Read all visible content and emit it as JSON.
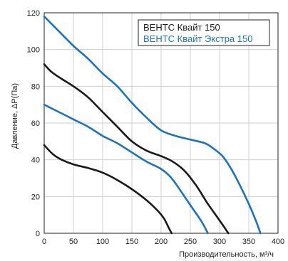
{
  "chart_data": {
    "type": "line",
    "title": "",
    "xlabel": "Производительность, м³/ч",
    "ylabel": "Давление, ΔP(Па)",
    "xlim": [
      0,
      400
    ],
    "ylim": [
      0,
      120
    ],
    "x_ticks": [
      0,
      50,
      100,
      150,
      200,
      250,
      300,
      350,
      400
    ],
    "y_ticks": [
      0,
      20,
      40,
      60,
      80,
      100,
      120
    ],
    "grid": true,
    "legend_position": "top-right",
    "legend": [
      {
        "label": "ВЕНТС Квайт 150",
        "color": "#1a1a1a"
      },
      {
        "label": "ВЕНТС Квайт Экстра 150",
        "color": "#1a73c2"
      }
    ],
    "series": [
      {
        "color": "#1a1a1a",
        "points": [
          [
            0,
            48
          ],
          [
            15,
            43
          ],
          [
            30,
            40
          ],
          [
            50,
            37.5
          ],
          [
            75,
            35.5
          ],
          [
            100,
            33
          ],
          [
            125,
            29
          ],
          [
            150,
            24
          ],
          [
            175,
            18
          ],
          [
            195,
            12
          ],
          [
            205,
            8
          ],
          [
            213,
            3
          ],
          [
            218,
            0
          ]
        ]
      },
      {
        "color": "#1a1a1a",
        "points": [
          [
            0,
            92
          ],
          [
            12,
            88
          ],
          [
            30,
            84
          ],
          [
            50,
            80
          ],
          [
            75,
            74
          ],
          [
            100,
            66
          ],
          [
            125,
            58
          ],
          [
            150,
            50
          ],
          [
            175,
            45
          ],
          [
            200,
            42
          ],
          [
            220,
            39
          ],
          [
            240,
            34
          ],
          [
            260,
            26
          ],
          [
            280,
            16
          ],
          [
            300,
            7
          ],
          [
            315,
            0
          ]
        ]
      },
      {
        "color": "#1a73c2",
        "points": [
          [
            0,
            70
          ],
          [
            25,
            66
          ],
          [
            50,
            62
          ],
          [
            75,
            58
          ],
          [
            100,
            53
          ],
          [
            125,
            49
          ],
          [
            150,
            44
          ],
          [
            175,
            39
          ],
          [
            200,
            35
          ],
          [
            215,
            31
          ],
          [
            225,
            27
          ],
          [
            240,
            20
          ],
          [
            255,
            13
          ],
          [
            270,
            6
          ],
          [
            280,
            0
          ]
        ]
      },
      {
        "color": "#1a73c2",
        "points": [
          [
            0,
            118
          ],
          [
            25,
            110
          ],
          [
            50,
            102
          ],
          [
            75,
            95
          ],
          [
            100,
            87
          ],
          [
            125,
            80
          ],
          [
            150,
            71
          ],
          [
            175,
            63
          ],
          [
            200,
            56
          ],
          [
            225,
            53
          ],
          [
            250,
            51
          ],
          [
            275,
            49
          ],
          [
            290,
            46
          ],
          [
            305,
            42
          ],
          [
            320,
            35
          ],
          [
            335,
            26
          ],
          [
            350,
            16
          ],
          [
            362,
            7
          ],
          [
            370,
            0
          ]
        ]
      }
    ]
  }
}
